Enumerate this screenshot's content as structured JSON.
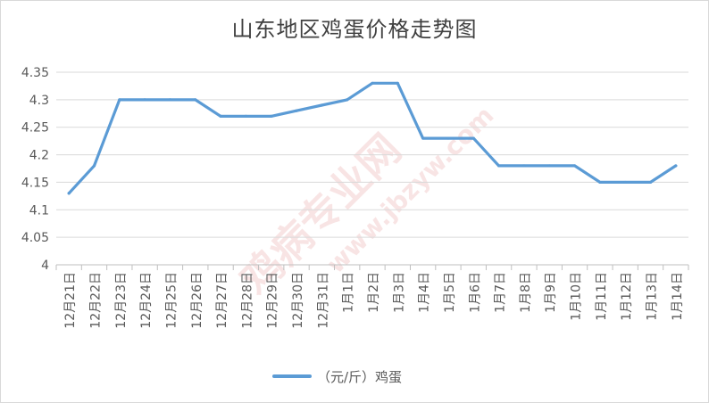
{
  "watermark": {
    "brand": "鸡病专业网",
    "url": "www.jbzyw.com"
  },
  "chart_data": {
    "type": "line",
    "title": "山东地区鸡蛋价格走势图",
    "xlabel": "",
    "ylabel": "",
    "ylim": [
      4,
      4.35
    ],
    "yticks": [
      "4",
      "4.05",
      "4.1",
      "4.15",
      "4.2",
      "4.25",
      "4.3",
      "4.35"
    ],
    "grid": true,
    "legend_position": "bottom",
    "categories": [
      "12月21日",
      "12月22日",
      "12月23日",
      "12月24日",
      "12月25日",
      "12月26日",
      "12月27日",
      "12月28日",
      "12月29日",
      "12月30日",
      "12月31日",
      "1月1日",
      "1月2日",
      "1月3日",
      "1月4日",
      "1月5日",
      "1月6日",
      "1月7日",
      "1月8日",
      "1月9日",
      "1月10日",
      "1月11日",
      "1月12日",
      "1月13日",
      "1月14日"
    ],
    "series": [
      {
        "name": "（元/斤）鸡蛋",
        "color": "#5b9bd5",
        "values": [
          4.13,
          4.18,
          4.3,
          4.3,
          4.3,
          4.3,
          4.27,
          4.27,
          4.27,
          4.28,
          4.29,
          4.3,
          4.33,
          4.33,
          4.23,
          4.23,
          4.23,
          4.18,
          4.18,
          4.18,
          4.18,
          4.15,
          4.15,
          4.15,
          4.18
        ]
      }
    ]
  }
}
